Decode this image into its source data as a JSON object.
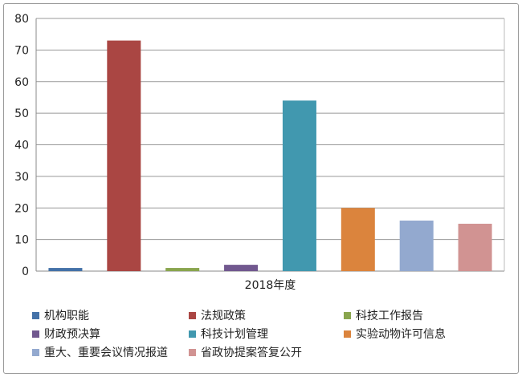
{
  "chart_data": {
    "type": "bar",
    "categories": [
      "2018年度"
    ],
    "series": [
      {
        "name": "机构职能",
        "values": [
          1
        ],
        "color": "#4472a8"
      },
      {
        "name": "法规政策",
        "values": [
          73
        ],
        "color": "#aa4643"
      },
      {
        "name": "科技工作报告",
        "values": [
          1
        ],
        "color": "#89a54e"
      },
      {
        "name": "财政预决算",
        "values": [
          2
        ],
        "color": "#71588f"
      },
      {
        "name": "科技计划管理",
        "values": [
          54
        ],
        "color": "#4198af"
      },
      {
        "name": "实验动物许可信息",
        "values": [
          20
        ],
        "color": "#db843d"
      },
      {
        "name": "重大、重要会议情况报道",
        "values": [
          16
        ],
        "color": "#93a9cf"
      },
      {
        "name": "省政协提案答复公开",
        "values": [
          15
        ],
        "color": "#d19392"
      }
    ],
    "ylim": [
      0,
      80
    ],
    "yticks": [
      0,
      10,
      20,
      30,
      40,
      50,
      60,
      70,
      80
    ],
    "grid": true,
    "legend": "bottom",
    "title": "",
    "xlabel": "",
    "ylabel": ""
  }
}
